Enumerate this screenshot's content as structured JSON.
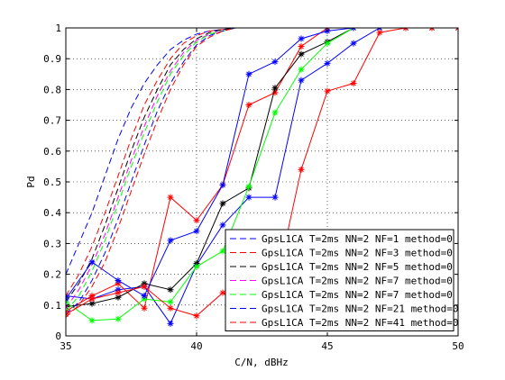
{
  "chart_data": {
    "type": "line",
    "xlabel": "C/N, dBHz",
    "ylabel": "Pd",
    "xlim": [
      35,
      50
    ],
    "ylim": [
      0,
      1
    ],
    "xticks": [
      35,
      40,
      45,
      50
    ],
    "yticks": [
      0,
      0.1,
      0.2,
      0.3,
      0.4,
      0.5,
      0.6,
      0.7,
      0.8,
      0.9,
      1
    ],
    "grid": true,
    "legend_position": "bottom-right",
    "series": [
      {
        "name": "GpsL1CA T=2ms NN=2 NF=1 method=0",
        "color": "#0000ff",
        "theory": {
          "x": [
            35,
            35.5,
            36,
            36.5,
            37,
            37.5,
            38,
            38.5,
            39,
            39.5,
            40,
            40.5,
            41,
            41.5,
            42,
            43,
            44,
            45,
            46,
            47,
            48,
            49,
            50
          ],
          "y": [
            0.2,
            0.3,
            0.4,
            0.52,
            0.64,
            0.74,
            0.82,
            0.88,
            0.93,
            0.96,
            0.98,
            0.99,
            0.995,
            1,
            1,
            1,
            1,
            1,
            1,
            1,
            1,
            1,
            1
          ]
        },
        "sim": {
          "x": [
            35,
            36,
            37,
            38,
            39,
            40,
            41,
            42,
            43,
            44,
            45,
            46,
            47,
            48,
            49,
            50
          ],
          "y": [
            0.13,
            0.12,
            0.15,
            0.16,
            0.04,
            0.23,
            0.36,
            0.45,
            0.45,
            0.83,
            0.885,
            0.95,
            1,
            1,
            1,
            1
          ]
        }
      },
      {
        "name": "GpsL1CA T=2ms NN=2 NF=3 method=0",
        "color": "#ff0000",
        "theory": {
          "x": [
            35,
            35.5,
            36,
            36.5,
            37,
            37.5,
            38,
            38.5,
            39,
            39.5,
            40,
            40.5,
            41,
            41.5,
            42,
            43,
            44,
            45,
            46,
            47,
            48,
            49,
            50
          ],
          "y": [
            0.13,
            0.2,
            0.29,
            0.4,
            0.52,
            0.64,
            0.75,
            0.83,
            0.9,
            0.95,
            0.975,
            0.99,
            0.995,
            1,
            1,
            1,
            1,
            1,
            1,
            1,
            1,
            1,
            1
          ]
        },
        "sim": {
          "x": [
            35,
            36,
            37,
            38,
            39,
            40,
            41,
            42,
            43,
            44,
            45,
            46,
            47,
            48,
            49,
            50
          ],
          "y": [
            0.08,
            0.13,
            0.17,
            0.09,
            0.45,
            0.375,
            0.49,
            0.75,
            0.79,
            0.94,
            1,
            1,
            1,
            1,
            1,
            1
          ]
        }
      },
      {
        "name": "GpsL1CA T=2ms NN=2 NF=5 method=0",
        "color": "#000000",
        "theory": {
          "x": [
            35,
            35.5,
            36,
            36.5,
            37,
            37.5,
            38,
            38.5,
            39,
            39.5,
            40,
            40.5,
            41,
            41.5,
            42,
            43,
            44,
            45,
            46,
            47,
            48,
            49,
            50
          ],
          "y": [
            0.11,
            0.17,
            0.25,
            0.36,
            0.48,
            0.6,
            0.71,
            0.8,
            0.88,
            0.93,
            0.965,
            0.985,
            0.995,
            1,
            1,
            1,
            1,
            1,
            1,
            1,
            1,
            1,
            1
          ]
        },
        "sim": {
          "x": [
            35,
            36,
            37,
            38,
            39,
            40,
            41,
            42,
            43,
            44,
            45,
            46,
            47,
            48,
            49,
            50
          ],
          "y": [
            0.095,
            0.105,
            0.125,
            0.17,
            0.15,
            0.235,
            0.43,
            0.48,
            0.805,
            0.915,
            0.955,
            1,
            1,
            1,
            1,
            1
          ]
        }
      },
      {
        "name": "GpsL1CA T=2ms NN=2 NF=7 method=0",
        "color": "#ff00ff",
        "theory": {
          "x": [
            35,
            35.5,
            36,
            36.5,
            37,
            37.5,
            38,
            38.5,
            39,
            39.5,
            40,
            40.5,
            41,
            41.5,
            42,
            43,
            44,
            45,
            46,
            47,
            48,
            49,
            50
          ],
          "y": [
            0.09,
            0.15,
            0.23,
            0.33,
            0.45,
            0.57,
            0.68,
            0.78,
            0.86,
            0.92,
            0.96,
            0.98,
            0.99,
            1,
            1,
            1,
            1,
            1,
            1,
            1,
            1,
            1,
            1
          ]
        },
        "sim": {
          "x": [],
          "y": []
        }
      },
      {
        "name": "GpsL1CA T=2ms NN=2 NF=7 method=0",
        "color": "#00ff00",
        "theory": {
          "x": [
            35,
            35.5,
            36,
            36.5,
            37,
            37.5,
            38,
            38.5,
            39,
            39.5,
            40,
            40.5,
            41,
            41.5,
            42,
            43,
            44,
            45,
            46,
            47,
            48,
            49,
            50
          ],
          "y": [
            0.08,
            0.13,
            0.21,
            0.31,
            0.43,
            0.55,
            0.66,
            0.76,
            0.85,
            0.91,
            0.955,
            0.98,
            0.99,
            1,
            1,
            1,
            1,
            1,
            1,
            1,
            1,
            1,
            1
          ]
        },
        "sim": {
          "x": [
            35,
            36,
            37,
            38,
            39,
            40,
            41,
            42,
            43,
            44,
            45,
            46,
            47,
            48,
            49,
            50
          ],
          "y": [
            0.11,
            0.05,
            0.055,
            0.12,
            0.11,
            0.225,
            0.275,
            0.485,
            0.725,
            0.865,
            0.95,
            1,
            1,
            1,
            1,
            1
          ]
        }
      },
      {
        "name": "GpsL1CA T=2ms NN=2 NF=21 method=0",
        "color": "#0000ff",
        "theory": {
          "x": [
            35,
            35.5,
            36,
            36.5,
            37,
            37.5,
            38,
            38.5,
            39,
            39.5,
            40,
            40.5,
            41,
            41.5,
            42,
            43,
            44,
            45,
            46,
            47,
            48,
            49,
            50
          ],
          "y": [
            0.07,
            0.11,
            0.18,
            0.27,
            0.38,
            0.5,
            0.62,
            0.73,
            0.82,
            0.89,
            0.945,
            0.975,
            0.99,
            1,
            1,
            1,
            1,
            1,
            1,
            1,
            1,
            1,
            1
          ]
        },
        "sim": {
          "x": [
            35,
            36,
            37,
            38,
            39,
            40,
            41,
            42,
            43,
            44,
            45,
            46,
            47,
            48,
            49,
            50
          ],
          "y": [
            0.12,
            0.24,
            0.18,
            0.13,
            0.31,
            0.34,
            0.49,
            0.85,
            0.89,
            0.965,
            0.99,
            1,
            1,
            1,
            1,
            1
          ]
        }
      },
      {
        "name": "GpsL1CA T=2ms NN=2 NF=41 method=0",
        "color": "#ff0000",
        "theory": {
          "x": [
            35,
            35.5,
            36,
            36.5,
            37,
            37.5,
            38,
            38.5,
            39,
            39.5,
            40,
            40.5,
            41,
            41.5,
            42,
            43,
            44,
            45,
            46,
            47,
            48,
            49,
            50
          ],
          "y": [
            0.06,
            0.1,
            0.16,
            0.24,
            0.35,
            0.47,
            0.59,
            0.7,
            0.8,
            0.88,
            0.94,
            0.97,
            0.99,
            1,
            1,
            1,
            1,
            1,
            1,
            1,
            1,
            1,
            1
          ]
        },
        "sim": {
          "x": [
            35,
            36,
            37,
            38,
            39,
            40,
            41,
            42,
            43,
            44,
            45,
            46,
            47,
            48,
            49,
            50
          ],
          "y": [
            0.07,
            0.12,
            0.14,
            0.16,
            0.09,
            0.065,
            0.14,
            0.11,
            0.15,
            0.54,
            0.795,
            0.82,
            0.985,
            1,
            1,
            1
          ]
        }
      }
    ]
  }
}
